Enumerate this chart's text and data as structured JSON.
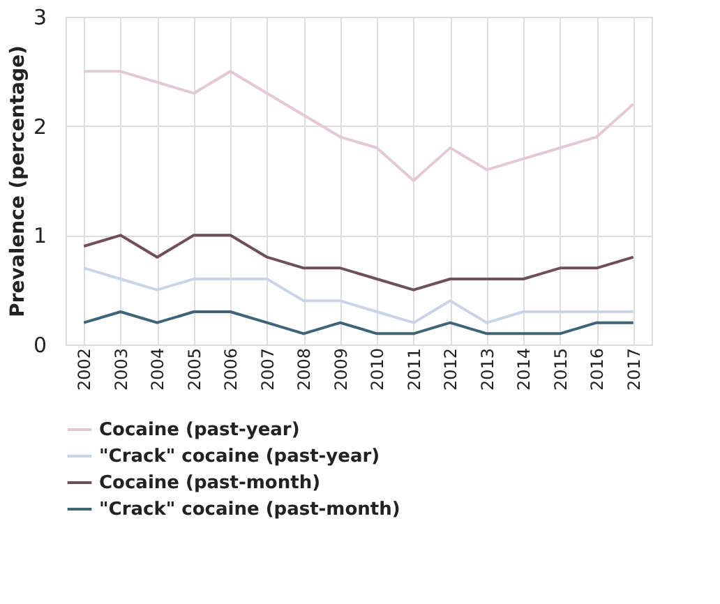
{
  "chart_data": {
    "type": "line",
    "ylabel": "Prevalence (percentage)",
    "categories": [
      "2002",
      "2003",
      "2004",
      "2005",
      "2006",
      "2007",
      "2008",
      "2009",
      "2010",
      "2011",
      "2012",
      "2013",
      "2014",
      "2015",
      "2016",
      "2017"
    ],
    "series": [
      {
        "name": "Cocaine (past-year)",
        "color": "#e2c9d5",
        "values": [
          2.5,
          2.5,
          2.4,
          2.3,
          2.5,
          2.3,
          2.1,
          1.9,
          1.8,
          1.5,
          1.8,
          1.6,
          1.7,
          1.8,
          1.9,
          2.2
        ]
      },
      {
        "name": "\"Crack\" cocaine (past-year)",
        "color": "#c9d5e5",
        "values": [
          0.7,
          0.6,
          0.5,
          0.6,
          0.6,
          0.6,
          0.4,
          0.4,
          0.3,
          0.2,
          0.4,
          0.2,
          0.3,
          0.3,
          0.3,
          0.3
        ]
      },
      {
        "name": "Cocaine (past-month)",
        "color": "#6e5058",
        "values": [
          0.9,
          1.0,
          0.8,
          1.0,
          1.0,
          0.8,
          0.7,
          0.7,
          0.6,
          0.5,
          0.6,
          0.6,
          0.6,
          0.7,
          0.7,
          0.8
        ]
      },
      {
        "name": "\"Crack\" cocaine (past-month)",
        "color": "#3e6478",
        "values": [
          0.2,
          0.3,
          0.2,
          0.3,
          0.3,
          0.2,
          0.1,
          0.2,
          0.1,
          0.1,
          0.2,
          0.1,
          0.1,
          0.1,
          0.2,
          0.2
        ]
      }
    ],
    "ylim": [
      0,
      3
    ],
    "yticks": [
      0,
      1,
      2,
      3
    ],
    "grid": true,
    "legend": "bottom",
    "marker": "none",
    "line_style": "solid"
  }
}
